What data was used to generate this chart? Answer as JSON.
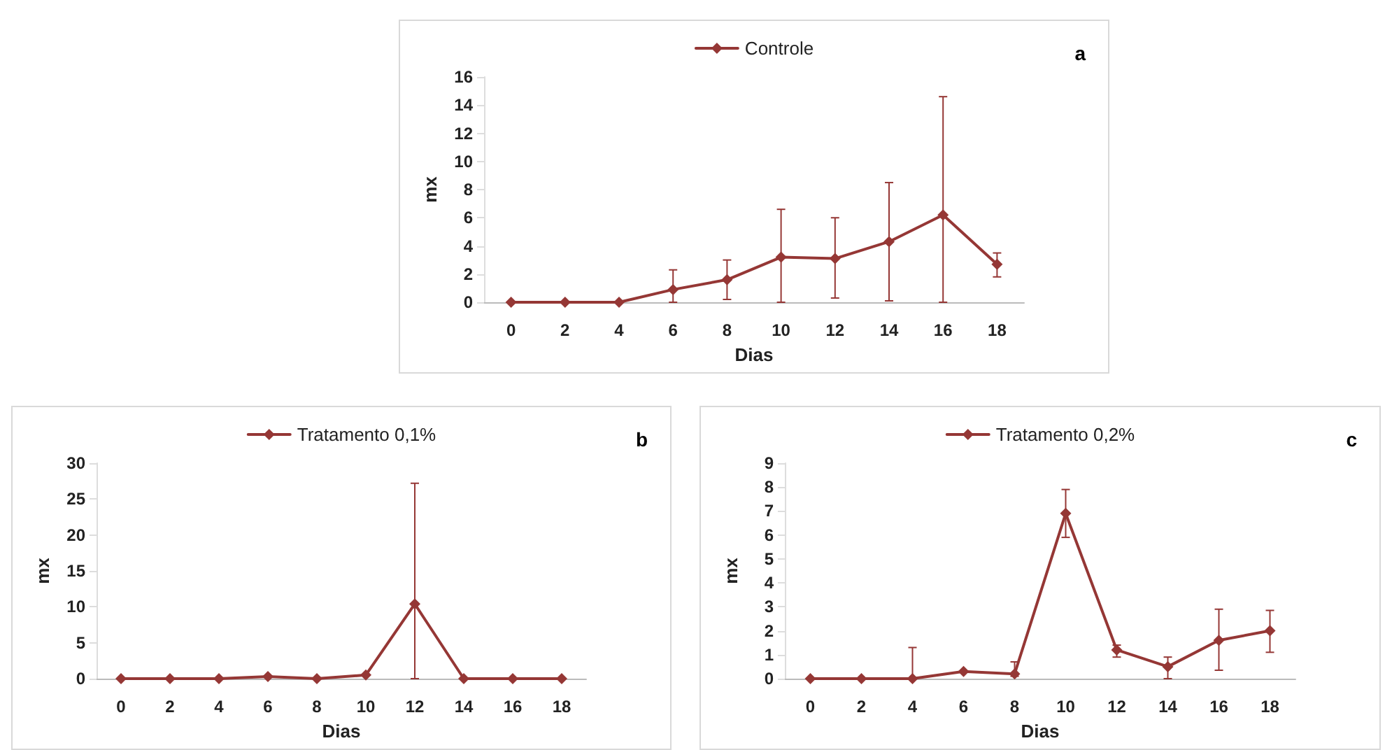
{
  "chart_data": [
    {
      "type": "line",
      "xlabel": "Dias",
      "ylabel": "mx",
      "annotations": [
        "a"
      ],
      "categories": [
        "0",
        "2",
        "4",
        "6",
        "8",
        "10",
        "12",
        "14",
        "16",
        "18"
      ],
      "ylim": [
        0,
        16
      ],
      "yticks": [
        0,
        2,
        4,
        6,
        8,
        10,
        12,
        14,
        16
      ],
      "legend": "top",
      "marker": "diamond",
      "grid": false,
      "series": [
        {
          "name": "Controle",
          "color": "#953735",
          "values": [
            0,
            0,
            0,
            0.9,
            1.6,
            3.2,
            3.1,
            4.3,
            6.2,
            2.7
          ],
          "errors": [
            null,
            null,
            null,
            [
              0,
              2.3
            ],
            [
              0.2,
              3.0
            ],
            [
              0,
              6.6
            ],
            [
              0.3,
              6.0
            ],
            [
              0.1,
              8.5
            ],
            [
              0,
              14.6
            ],
            [
              1.8,
              3.5
            ]
          ]
        }
      ]
    },
    {
      "type": "line",
      "xlabel": "Dias",
      "ylabel": "mx",
      "annotations": [
        "b"
      ],
      "categories": [
        "0",
        "2",
        "4",
        "6",
        "8",
        "10",
        "12",
        "14",
        "16",
        "18"
      ],
      "ylim": [
        0,
        30
      ],
      "yticks": [
        0,
        5,
        10,
        15,
        20,
        25,
        30
      ],
      "legend": "top",
      "marker": "diamond",
      "grid": false,
      "series": [
        {
          "name": "Tratamento 0,1%",
          "color": "#953735",
          "values": [
            0,
            0,
            0,
            0.3,
            0,
            0.5,
            10.4,
            0,
            0,
            0
          ],
          "errors": [
            null,
            null,
            null,
            null,
            null,
            null,
            [
              0,
              27.2
            ],
            null,
            null,
            null
          ]
        }
      ]
    },
    {
      "type": "line",
      "xlabel": "Dias",
      "ylabel": "mx",
      "annotations": [
        "c"
      ],
      "categories": [
        "0",
        "2",
        "4",
        "6",
        "8",
        "10",
        "12",
        "14",
        "16",
        "18"
      ],
      "ylim": [
        0,
        9
      ],
      "yticks": [
        0,
        1,
        2,
        3,
        4,
        5,
        6,
        7,
        8,
        9
      ],
      "legend": "top",
      "marker": "diamond",
      "grid": false,
      "series": [
        {
          "name": "Tratamento 0,2%",
          "color": "#953735",
          "values": [
            0,
            0,
            0,
            0.3,
            0.2,
            6.9,
            1.2,
            0.5,
            1.6,
            2.0
          ],
          "errors": [
            null,
            null,
            [
              0,
              1.3
            ],
            null,
            [
              0.1,
              0.7
            ],
            [
              5.9,
              7.9
            ],
            [
              0.9,
              1.4
            ],
            [
              0,
              0.9
            ],
            [
              0.35,
              2.9
            ],
            [
              1.1,
              2.85
            ]
          ]
        }
      ]
    }
  ]
}
